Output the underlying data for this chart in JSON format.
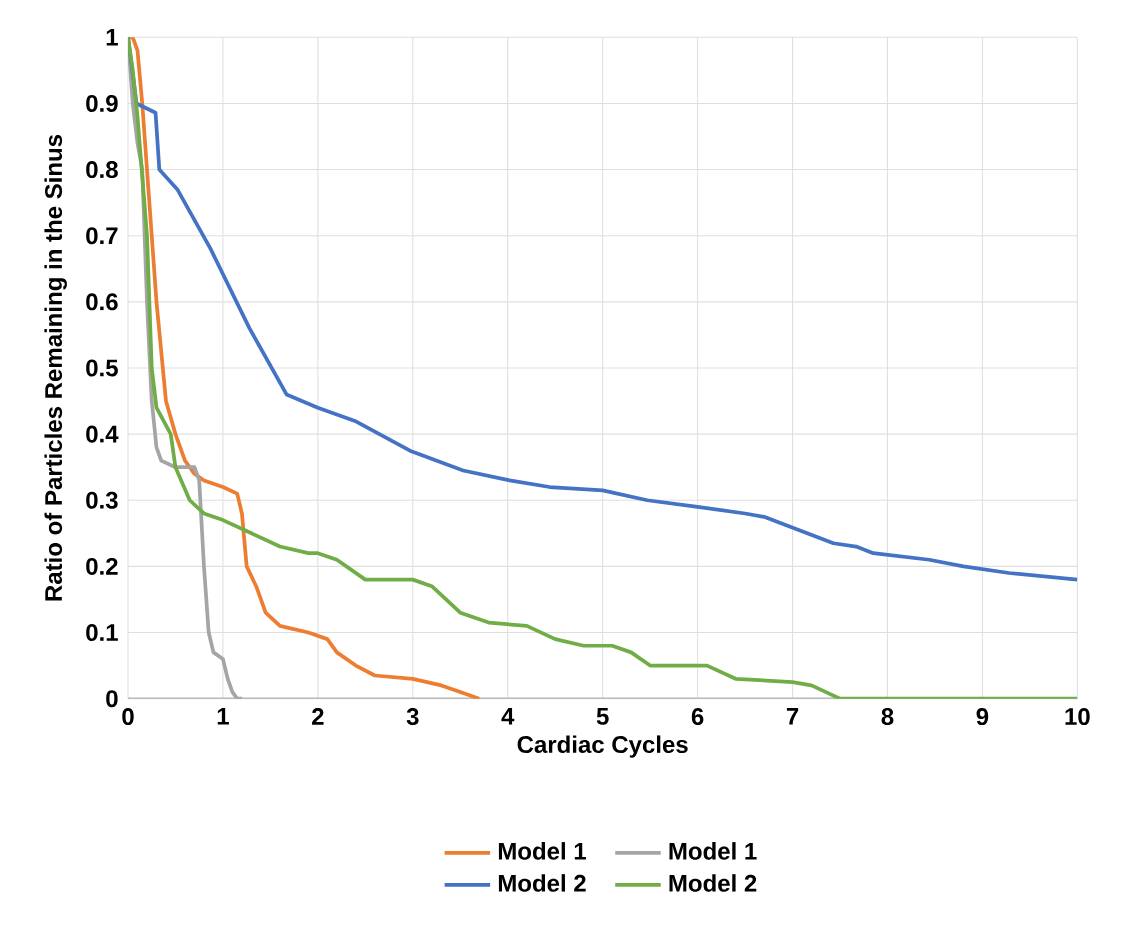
{
  "chart_data": {
    "type": "line",
    "xlabel": "Cardiac Cycles",
    "ylabel": "Ratio of Particles Remaining in the Sinus",
    "xlim": [
      0,
      10
    ],
    "ylim": [
      0,
      1
    ],
    "xticks": [
      0,
      1,
      2,
      3,
      4,
      5,
      6,
      7,
      8,
      9,
      10
    ],
    "yticks": [
      0,
      0.1,
      0.2,
      0.3,
      0.4,
      0.5,
      0.6,
      0.7,
      0.8,
      0.9,
      1
    ],
    "grid": true,
    "legend": "bottom",
    "marker": "none",
    "line_style": "solid",
    "series": [
      {
        "name": "Model 1",
        "color": "#ed7d31",
        "x": [
          0,
          0.05,
          0.1,
          0.15,
          0.2,
          0.3,
          0.4,
          0.5,
          0.6,
          0.7,
          0.8,
          1.0,
          1.15,
          1.2,
          1.25,
          1.35,
          1.45,
          1.6,
          1.9,
          2.1,
          2.2,
          2.4,
          2.6,
          3.0,
          3.3,
          3.5,
          3.7
        ],
        "values": [
          1,
          1,
          0.98,
          0.9,
          0.8,
          0.6,
          0.45,
          0.4,
          0.36,
          0.34,
          0.33,
          0.32,
          0.31,
          0.28,
          0.2,
          0.17,
          0.13,
          0.11,
          0.1,
          0.09,
          0.07,
          0.05,
          0.035,
          0.03,
          0.02,
          0.01,
          0
        ]
      },
      {
        "name": "Model 1",
        "color": "#a5a5a5",
        "x": [
          0,
          0.05,
          0.1,
          0.15,
          0.2,
          0.25,
          0.3,
          0.35,
          0.5,
          0.7,
          0.75,
          0.8,
          0.85,
          0.9,
          1.0,
          1.05,
          1.1,
          1.15,
          1.2
        ],
        "values": [
          1,
          0.9,
          0.84,
          0.8,
          0.6,
          0.45,
          0.38,
          0.36,
          0.35,
          0.35,
          0.33,
          0.2,
          0.1,
          0.07,
          0.06,
          0.03,
          0.01,
          0,
          0
        ]
      },
      {
        "name": "Model 2",
        "color": "#4472c4",
        "x": [
          0,
          0.09,
          0.29,
          0.33,
          0.52,
          0.87,
          1.28,
          1.67,
          2.0,
          2.39,
          2.97,
          3.53,
          4.02,
          4.44,
          5.0,
          5.47,
          6.0,
          6.5,
          6.7,
          7.43,
          7.67,
          7.85,
          8.44,
          8.8,
          9.28,
          10
        ],
        "values": [
          1,
          0.9,
          0.886,
          0.8,
          0.77,
          0.68,
          0.56,
          0.46,
          0.44,
          0.42,
          0.375,
          0.345,
          0.33,
          0.32,
          0.315,
          0.3,
          0.29,
          0.28,
          0.275,
          0.235,
          0.23,
          0.22,
          0.21,
          0.2,
          0.19,
          0.18
        ]
      },
      {
        "name": "Model 2",
        "color": "#70ad47",
        "x": [
          0,
          0.05,
          0.1,
          0.2,
          0.25,
          0.3,
          0.45,
          0.5,
          0.65,
          0.8,
          1.0,
          1.3,
          1.6,
          1.9,
          2.0,
          2.2,
          2.5,
          3.0,
          3.2,
          3.5,
          3.8,
          4.2,
          4.5,
          4.8,
          5.1,
          5.3,
          5.5,
          6.1,
          6.4,
          7.0,
          7.2,
          7.5,
          10
        ],
        "values": [
          1,
          0.95,
          0.88,
          0.7,
          0.5,
          0.44,
          0.4,
          0.35,
          0.3,
          0.28,
          0.27,
          0.25,
          0.23,
          0.22,
          0.22,
          0.21,
          0.18,
          0.18,
          0.17,
          0.13,
          0.115,
          0.11,
          0.09,
          0.08,
          0.08,
          0.07,
          0.05,
          0.05,
          0.03,
          0.025,
          0.02,
          0,
          0
        ]
      }
    ]
  }
}
